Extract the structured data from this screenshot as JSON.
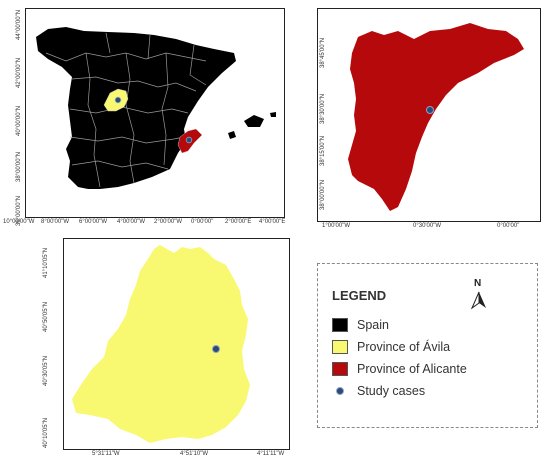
{
  "spain_map": {
    "lat_labels": [
      "44°00'00\"N",
      "42°00'00\"N",
      "40°00'00\"N",
      "38°00'00\"N",
      "36°00'00\"N"
    ],
    "lon_labels": [
      "10°00'00\"W",
      "8°00'00\"W",
      "6°00'00\"W",
      "4°00'00\"W",
      "2°00'00\"W",
      "0°00'00\"",
      "2°00'00\"E",
      "4°00'00\"E"
    ]
  },
  "alicante_map": {
    "lat_labels": [
      "38°45'00\"N",
      "38°30'00\"N",
      "38°15'00\"N",
      "38°00'00\"N"
    ],
    "lon_labels": [
      "1°00'00\"W",
      "0°30'00\"W",
      "0°00'00\""
    ]
  },
  "avila_map": {
    "lat_labels": [
      "41°10'05\"N",
      "40°50'05\"N",
      "40°30'05\"N",
      "40°10'05\"N"
    ],
    "lon_labels": [
      "5°31'11\"W",
      "4°51'10\"W",
      "4°11'11\"W"
    ]
  },
  "legend": {
    "title": "LEGEND",
    "north_letter": "N",
    "items": [
      {
        "label": "Spain",
        "color": "#000000",
        "kind": "box"
      },
      {
        "label": "Province of Ávila",
        "color": "#f9f871",
        "kind": "box"
      },
      {
        "label": "Province of Alicante",
        "color": "#b5090b",
        "kind": "box"
      },
      {
        "label": "Study cases",
        "color": "#2c4a78",
        "kind": "dot"
      }
    ]
  },
  "colors": {
    "spain": "#000000",
    "avila": "#f9f871",
    "alicante": "#b5090b",
    "marker": "#2c4a78",
    "borders": "#9a9a9a"
  },
  "icons": [
    "north-arrow-icon",
    "study-case-marker-icon"
  ]
}
